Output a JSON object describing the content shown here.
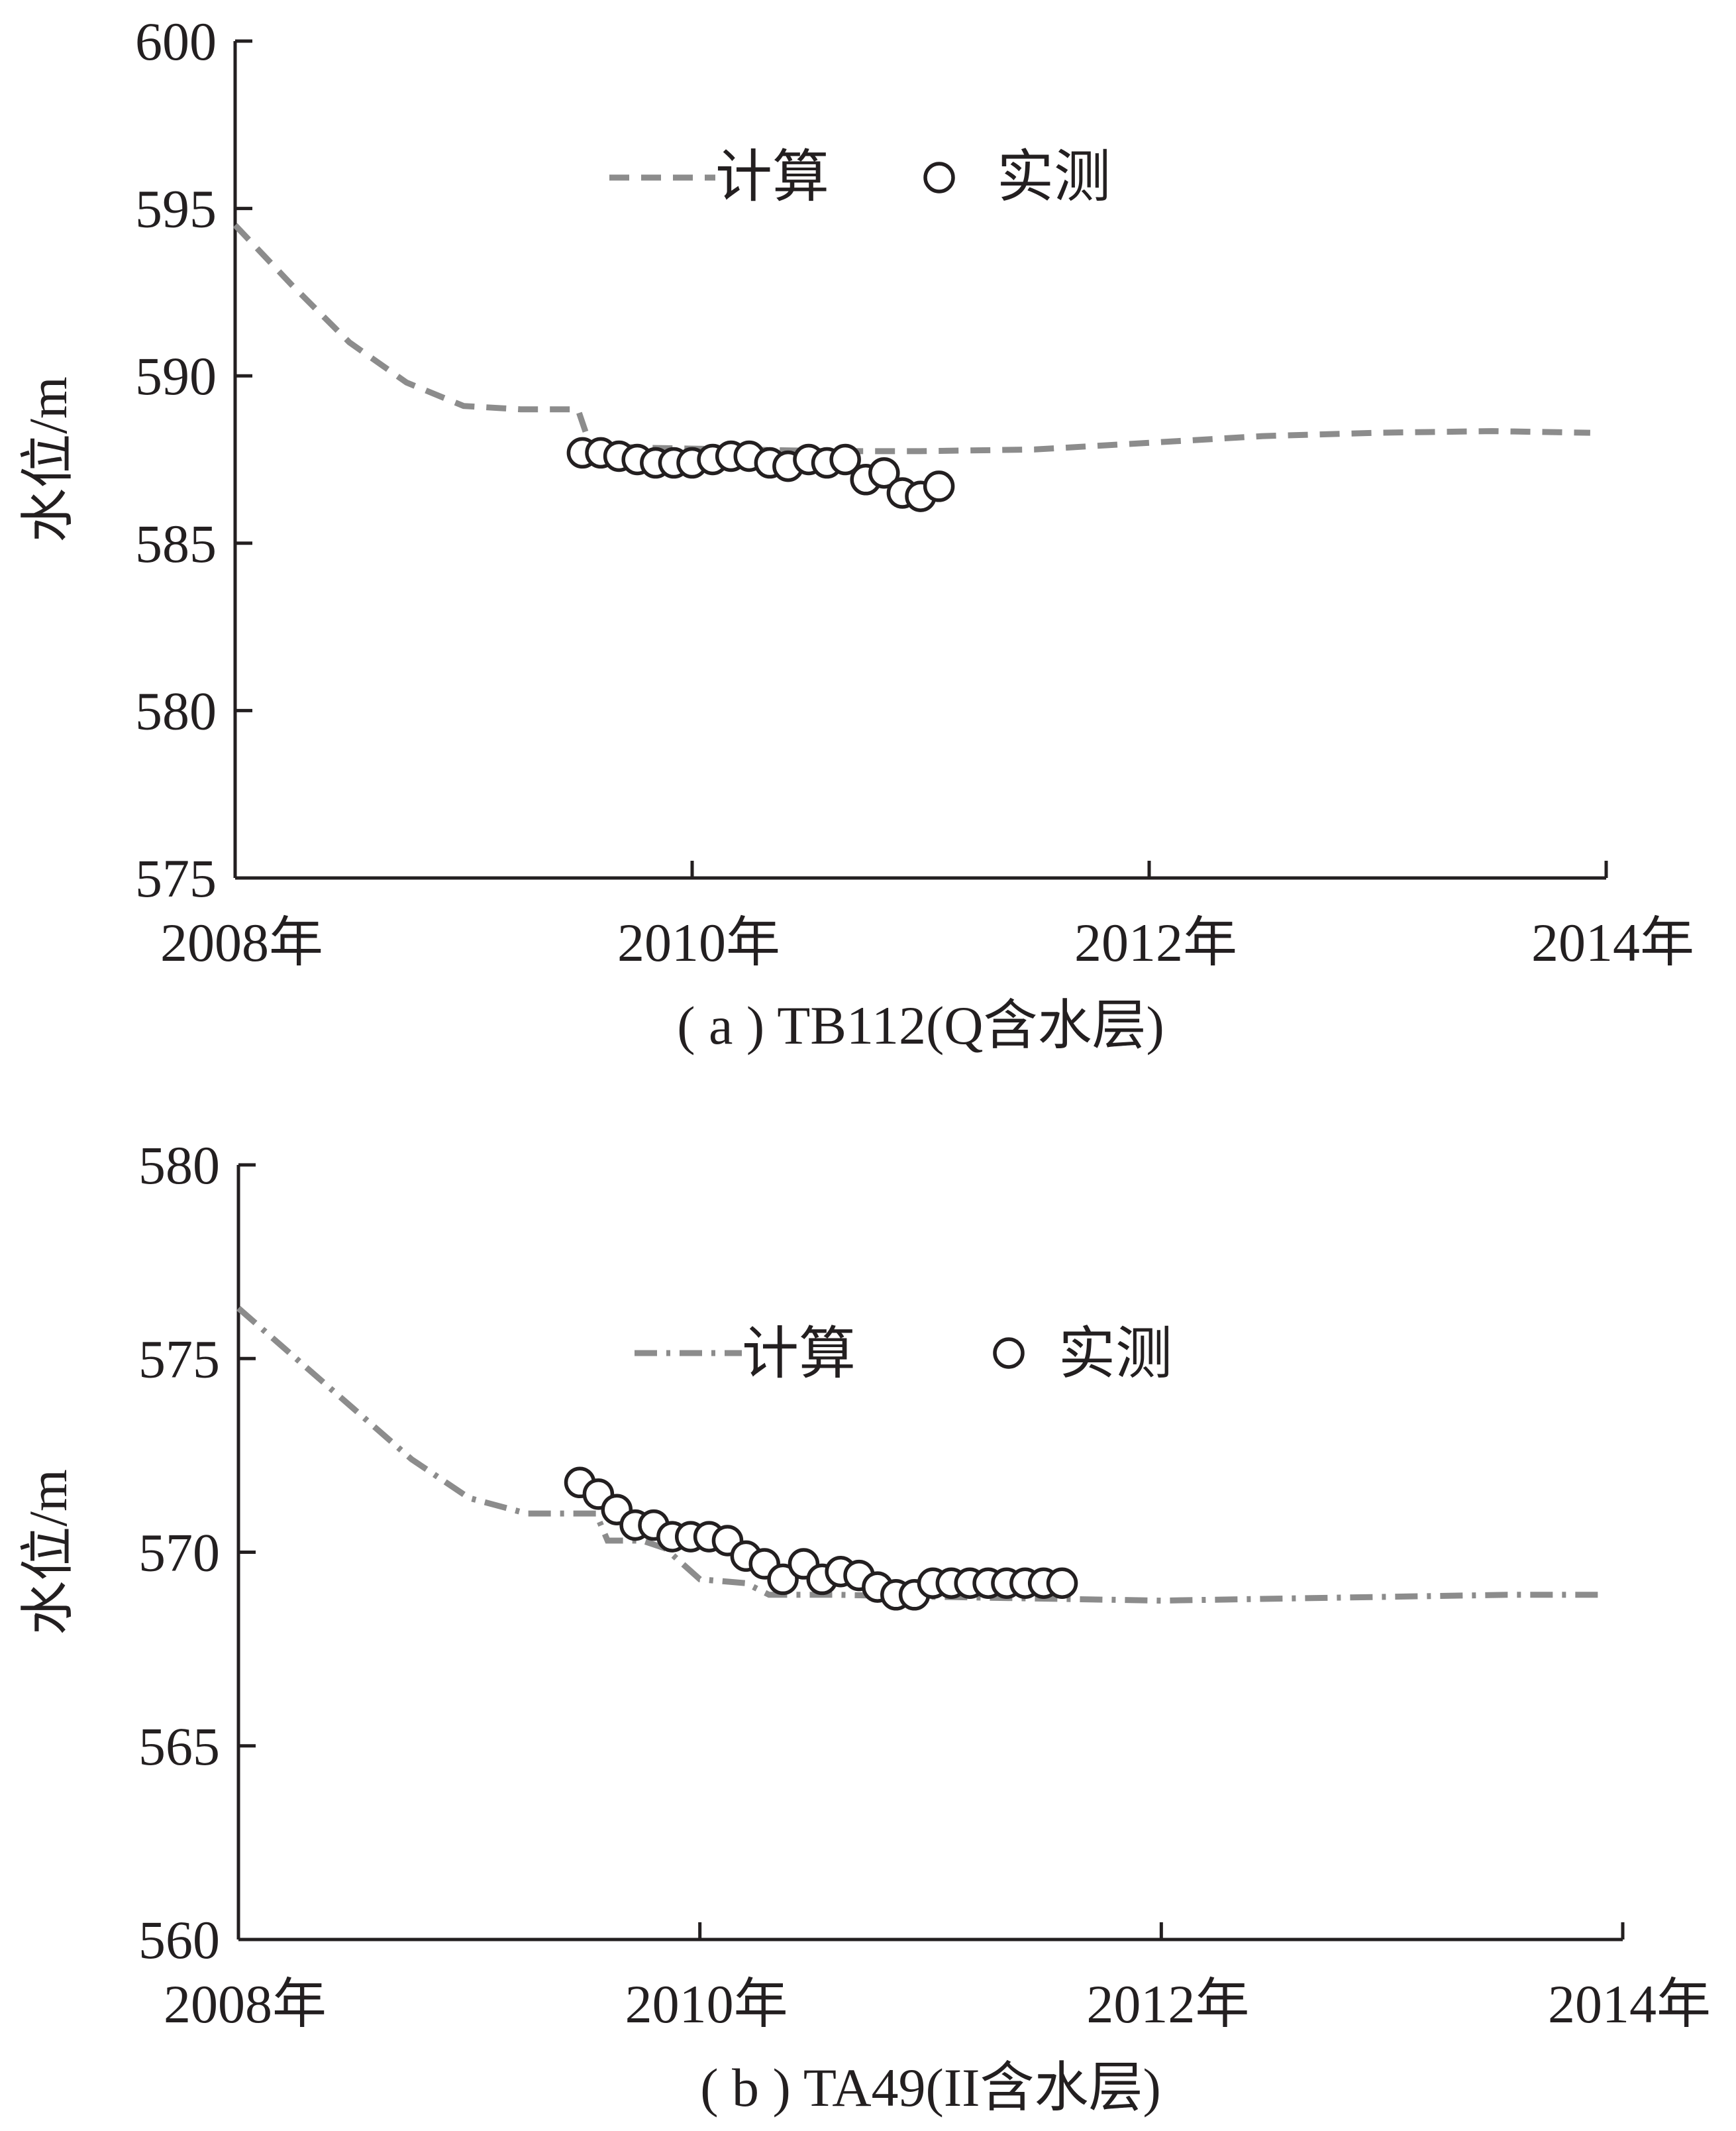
{
  "chart_data": [
    {
      "type": "line",
      "caption": "( a ) TB112(Q含水层)",
      "ylabel": "水位/m",
      "xlabel": "",
      "xlim": [
        2008,
        2014
      ],
      "ylim": [
        575,
        600
      ],
      "yticks": [
        575,
        580,
        585,
        590,
        595,
        600
      ],
      "xticks": [
        2008,
        2010,
        2012,
        2014
      ],
      "xtick_labels": [
        "2008年",
        "2010年",
        "2012年",
        "2014年"
      ],
      "legend": {
        "calc": "计算",
        "obs": "实测",
        "position": "top-center"
      },
      "series": [
        {
          "name": "计算",
          "style": "dashed",
          "color": "#8c8c8c",
          "x": [
            2008.0,
            2008.25,
            2008.5,
            2008.75,
            2009.0,
            2009.25,
            2009.5,
            2009.55,
            2009.6,
            2009.8,
            2010.2,
            2010.6,
            2011.0,
            2011.5,
            2012.0,
            2012.5,
            2013.0,
            2013.5,
            2013.93
          ],
          "y": [
            594.5,
            592.7,
            591.0,
            589.8,
            589.1,
            589.0,
            589.0,
            588.0,
            587.9,
            587.85,
            587.8,
            587.75,
            587.75,
            587.8,
            588.0,
            588.2,
            588.3,
            588.35,
            588.3
          ]
        },
        {
          "name": "实测",
          "style": "open-circle",
          "x": [
            2009.52,
            2009.6,
            2009.68,
            2009.76,
            2009.84,
            2009.92,
            2010.0,
            2010.09,
            2010.17,
            2010.25,
            2010.34,
            2010.42,
            2010.51,
            2010.59,
            2010.67,
            2010.76,
            2010.84,
            2010.92,
            2011.0,
            2011.08
          ],
          "y": [
            587.7,
            587.7,
            587.6,
            587.5,
            587.4,
            587.4,
            587.4,
            587.5,
            587.6,
            587.6,
            587.4,
            587.3,
            587.5,
            587.4,
            587.5,
            586.9,
            587.1,
            586.5,
            586.4,
            586.7
          ]
        }
      ]
    },
    {
      "type": "line",
      "caption": "( b ) TA49(II含水层)",
      "ylabel": "水位/m",
      "xlabel": "",
      "xlim": [
        2008,
        2014
      ],
      "ylim": [
        560,
        580
      ],
      "yticks": [
        560,
        565,
        570,
        575,
        580
      ],
      "xticks": [
        2008,
        2010,
        2012,
        2014
      ],
      "xtick_labels": [
        "2008年",
        "2010年",
        "2012年",
        "2014年"
      ],
      "legend": {
        "calc": "计算",
        "obs": "实测",
        "position": "top-center"
      },
      "series": [
        {
          "name": "计算",
          "style": "dash-dot",
          "color": "#8c8c8c",
          "x": [
            2008.0,
            2008.25,
            2008.5,
            2008.75,
            2009.0,
            2009.25,
            2009.55,
            2009.6,
            2009.75,
            2009.85,
            2010.0,
            2010.2,
            2010.3,
            2010.6,
            2011.0,
            2011.5,
            2012.0,
            2012.5,
            2013.0,
            2013.5,
            2013.93
          ],
          "y": [
            576.3,
            575.0,
            573.7,
            572.4,
            571.4,
            571.0,
            571.0,
            570.3,
            570.3,
            570.1,
            569.3,
            569.2,
            568.9,
            568.9,
            568.85,
            568.8,
            568.75,
            568.8,
            568.85,
            568.9,
            568.9
          ]
        },
        {
          "name": "实测",
          "style": "open-circle",
          "x": [
            2009.48,
            2009.56,
            2009.64,
            2009.72,
            2009.8,
            2009.88,
            2009.96,
            2010.04,
            2010.12,
            2010.2,
            2010.28,
            2010.36,
            2010.45,
            2010.53,
            2010.61,
            2010.69,
            2010.77,
            2010.85,
            2010.93,
            2011.01,
            2011.09,
            2011.17,
            2011.25,
            2011.33,
            2011.41,
            2011.49,
            2011.57
          ],
          "y": [
            571.8,
            571.5,
            571.1,
            570.7,
            570.7,
            570.4,
            570.4,
            570.4,
            570.3,
            569.9,
            569.7,
            569.3,
            569.7,
            569.3,
            569.5,
            569.4,
            569.1,
            568.9,
            568.9,
            569.2,
            569.2,
            569.2,
            569.2,
            569.2,
            569.2,
            569.2,
            569.2
          ]
        }
      ]
    }
  ]
}
